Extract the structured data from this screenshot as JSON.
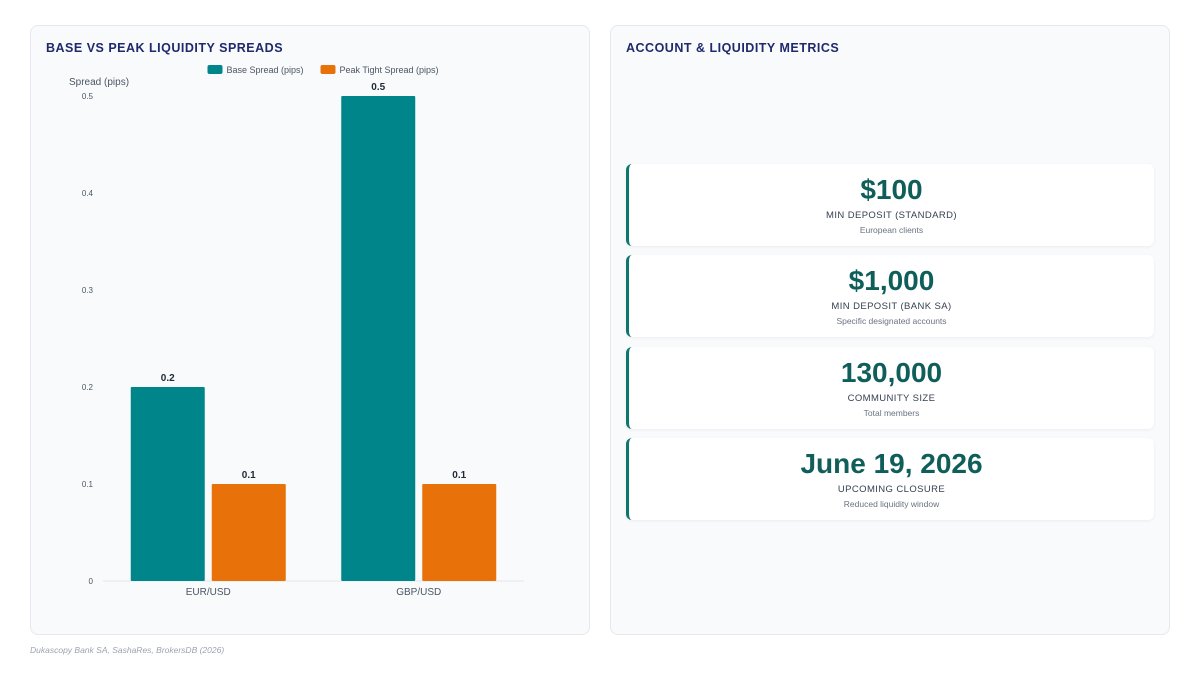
{
  "chart_panel": {
    "title": "BASE VS PEAK LIQUIDITY SPREADS"
  },
  "metrics_panel": {
    "title": "ACCOUNT & LIQUIDITY METRICS",
    "cards": [
      {
        "value": "$100",
        "label": "MIN DEPOSIT (STANDARD)",
        "sub": "European clients"
      },
      {
        "value": "$1,000",
        "label": "MIN DEPOSIT (BANK SA)",
        "sub": "Specific designated accounts"
      },
      {
        "value": "130,000",
        "label": "COMMUNITY SIZE",
        "sub": "Total members"
      },
      {
        "value": "June 19, 2026",
        "label": "UPCOMING CLOSURE",
        "sub": "Reduced liquidity window"
      }
    ]
  },
  "source": "Dukascopy Bank SA, SashaRes, BrokersDB (2026)",
  "chart_data": {
    "type": "bar",
    "title": "BASE VS PEAK LIQUIDITY SPREADS",
    "xlabel": "",
    "ylabel": "Spread (pips)",
    "categories": [
      "EUR/USD",
      "GBP/USD"
    ],
    "series": [
      {
        "name": "Base Spread (pips)",
        "values": [
          0.2,
          0.5
        ],
        "color": "#00868a",
        "labels": [
          "0.2",
          "0.5"
        ]
      },
      {
        "name": "Peak Tight Spread (pips)",
        "values": [
          0.1,
          0.1
        ],
        "color": "#e8710a",
        "labels": [
          "0.1",
          "0.1"
        ]
      }
    ],
    "ylim": [
      0,
      0.5
    ],
    "yticks": [
      0,
      0.1,
      0.2,
      0.3,
      0.4,
      0.5
    ],
    "ytick_labels": [
      "0",
      "0.1",
      "0.2",
      "0.3",
      "0.4",
      "0.5"
    ],
    "legend": "top-center",
    "grid": false
  }
}
